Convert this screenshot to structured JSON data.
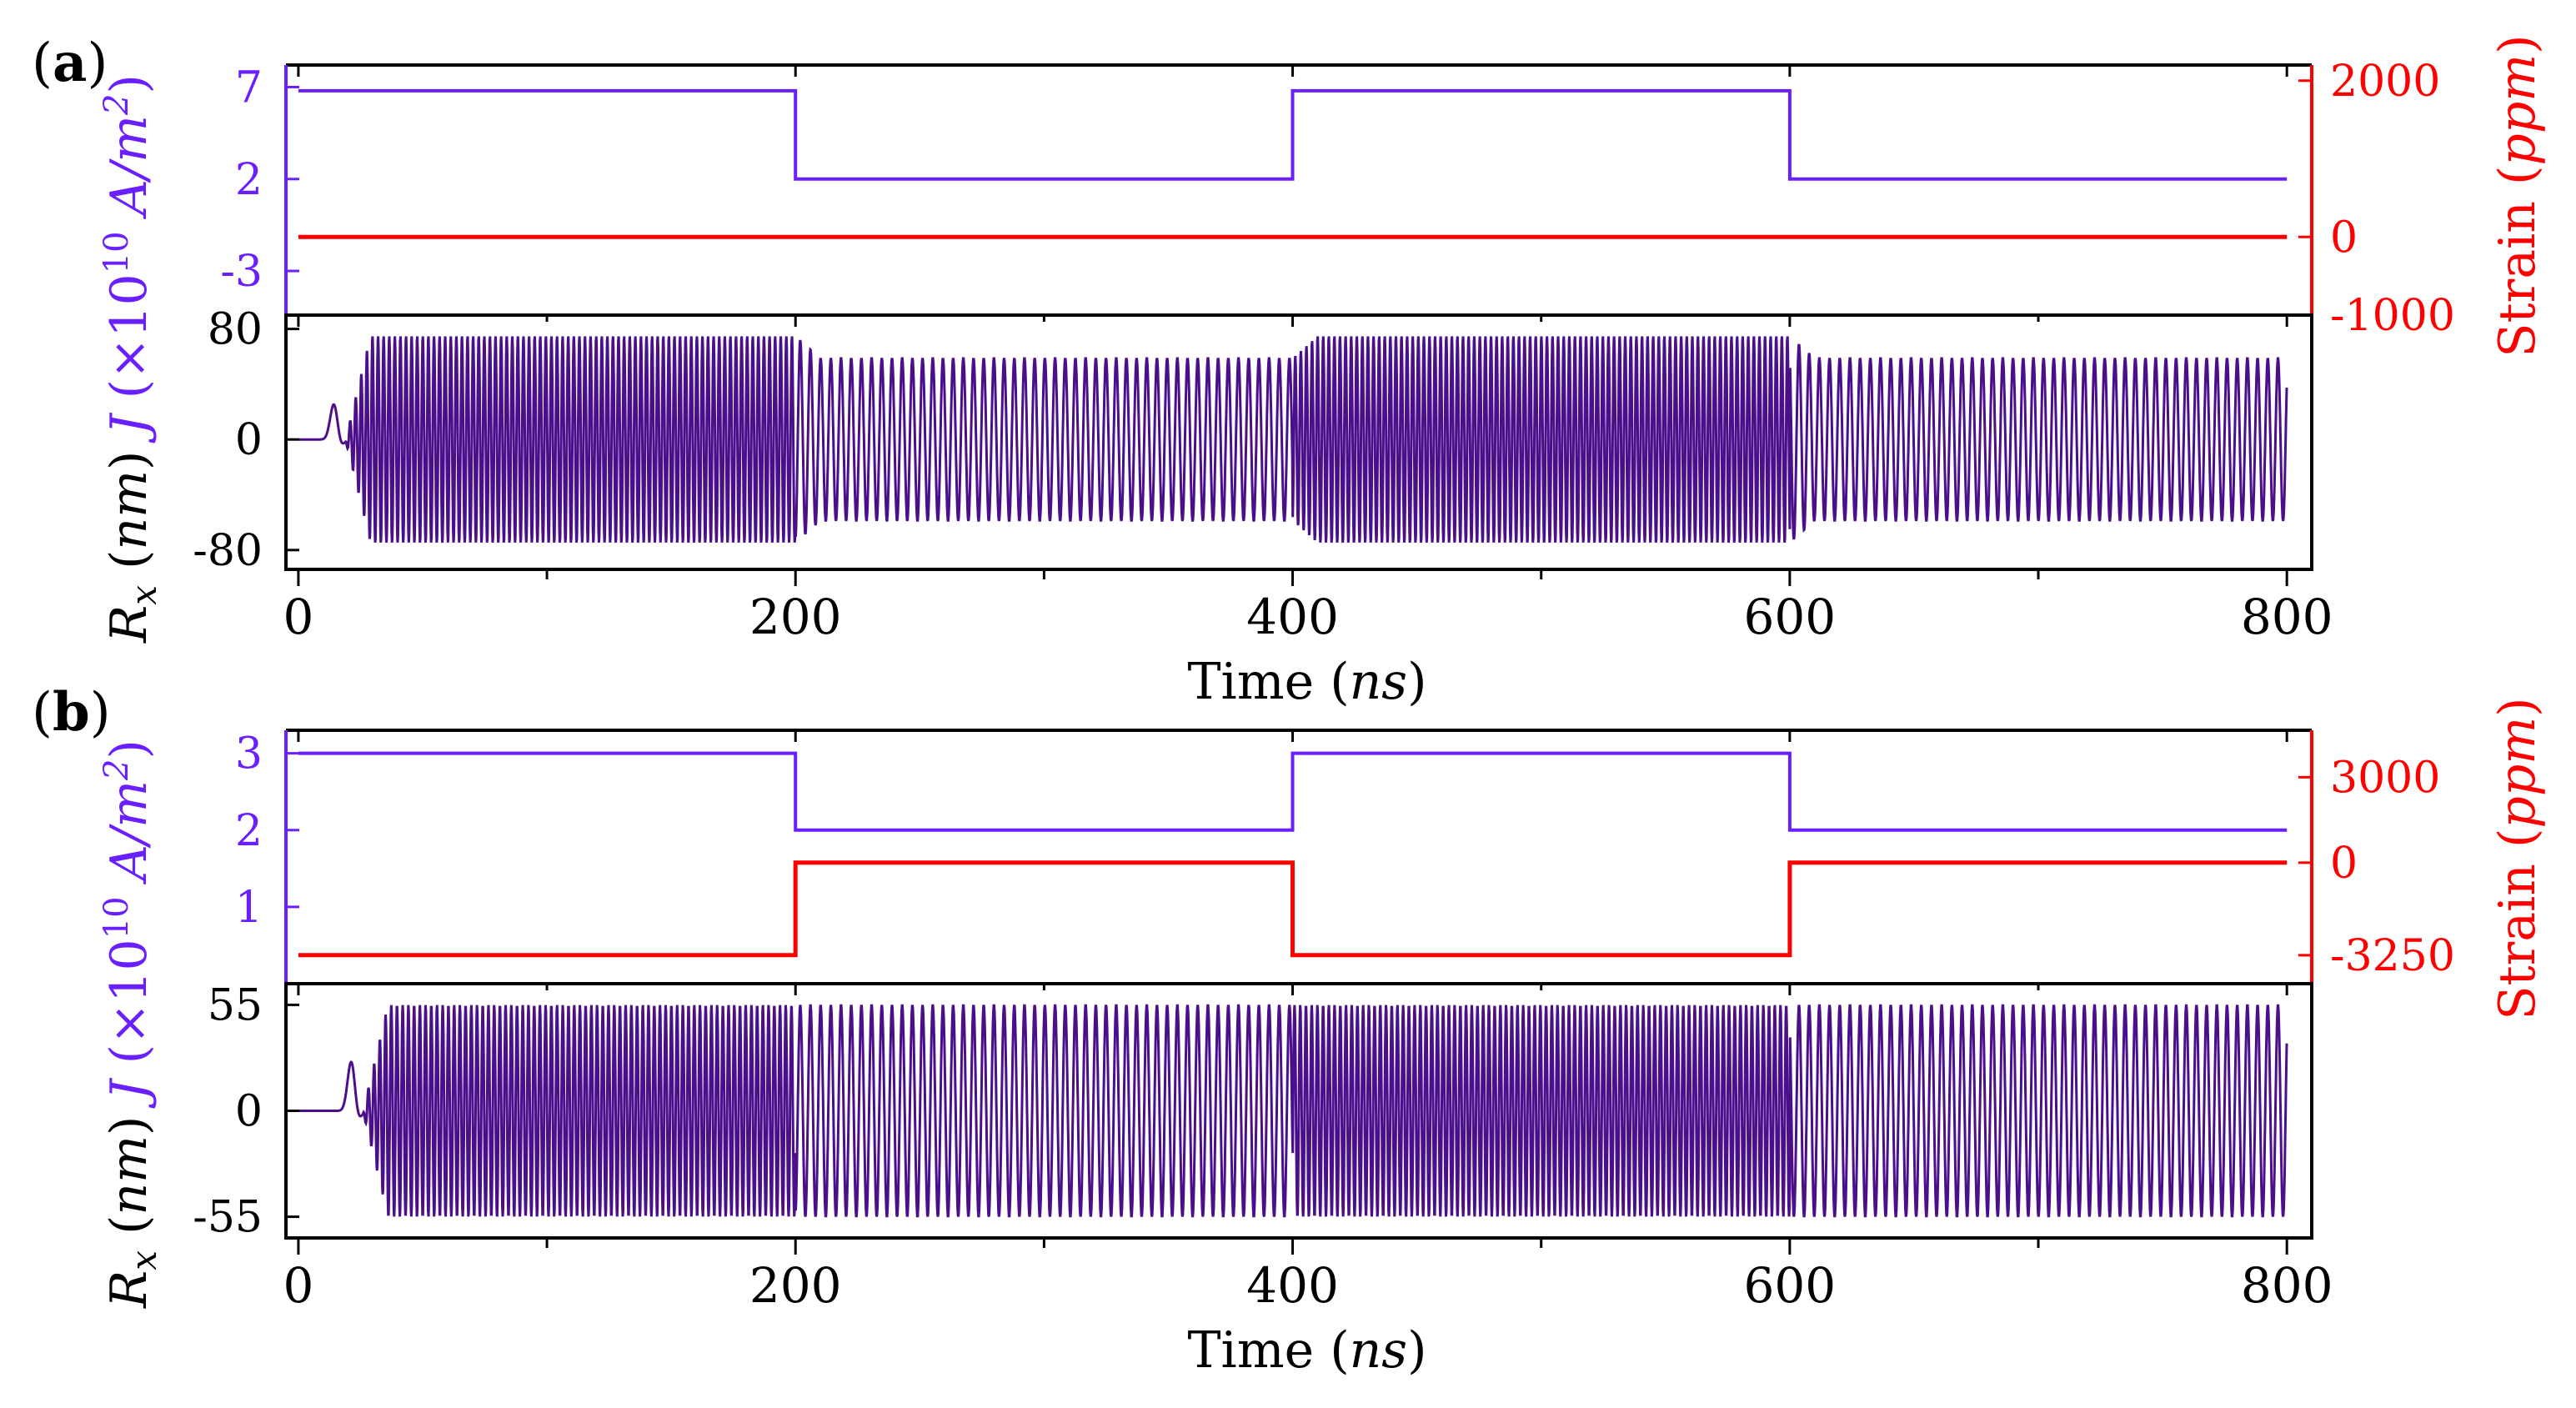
{
  "colors": {
    "current": "#6a1fff",
    "strain": "#ff0000",
    "rx": "#4b0f8c",
    "axis": "#000000"
  },
  "chart_data": [
    {
      "panel_label": "(a)",
      "type": "line",
      "xlabel": {
        "main": "Time",
        "unit": "ns"
      },
      "x_ticks": [
        "0",
        "200",
        "400",
        "600",
        "800"
      ],
      "x_tick_values": [
        0,
        200,
        400,
        600,
        800
      ],
      "xlim": [
        -5,
        810
      ],
      "top": {
        "left_label": {
          "symbol": "J",
          "mult": "(×10",
          "exp": "10",
          "unit": "A/m",
          "unitexp": "2",
          "close": ")"
        },
        "right_label": {
          "main": "Strain",
          "unit": "ppm"
        },
        "left_ticks": [
          "7",
          "2",
          "-3"
        ],
        "left_tick_values": [
          7,
          2,
          -3
        ],
        "left_ylim": [
          -5.4,
          8.2
        ],
        "right_ticks": [
          "2000",
          "0",
          "-1000"
        ],
        "right_tick_values": [
          2000,
          0,
          -1000
        ],
        "right_ylim": [
          -1000,
          2200
        ],
        "series": [
          {
            "name": "J",
            "axis": "left",
            "x": [
              0,
              200,
              200,
              400,
              400,
              600,
              600,
              800
            ],
            "y": [
              6.8,
              6.8,
              2,
              2,
              6.8,
              6.8,
              2,
              2
            ]
          },
          {
            "name": "Strain",
            "axis": "right",
            "x": [
              0,
              800
            ],
            "y": [
              0,
              0
            ]
          }
        ]
      },
      "bottom": {
        "left_label": {
          "symbol": "R",
          "sub": "x",
          "unit": "nm"
        },
        "left_ticks": [
          "80",
          "0",
          "-80"
        ],
        "left_tick_values": [
          80,
          0,
          -80
        ],
        "ylim": [
          -94,
          90
        ],
        "series": {
          "name": "Rx",
          "start_time": 8,
          "bump_time": 15,
          "bump_amp": 34,
          "segments": [
            {
              "t0": 0,
              "t1": 200,
              "amp": 75,
              "period": 2.25
            },
            {
              "t0": 200,
              "t1": 400,
              "amp": 59,
              "period": 4.1
            },
            {
              "t0": 400,
              "t1": 600,
              "amp": 75,
              "period": 2.25
            },
            {
              "t0": 600,
              "t1": 800,
              "amp": 59,
              "period": 4.1
            }
          ]
        }
      }
    },
    {
      "panel_label": "(b)",
      "type": "line",
      "xlabel": {
        "main": "Time",
        "unit": "ns"
      },
      "x_ticks": [
        "0",
        "200",
        "400",
        "600",
        "800"
      ],
      "x_tick_values": [
        0,
        200,
        400,
        600,
        800
      ],
      "xlim": [
        -5,
        810
      ],
      "top": {
        "left_label": {
          "symbol": "J",
          "mult": "(×10",
          "exp": "10",
          "unit": "A/m",
          "unitexp": "2",
          "close": ")"
        },
        "right_label": {
          "main": "Strain",
          "unit": "ppm"
        },
        "left_ticks": [
          "3",
          "2",
          "1"
        ],
        "left_tick_values": [
          3,
          2,
          1
        ],
        "left_ylim": [
          0,
          3.3
        ],
        "right_ticks": [
          "3000",
          "0",
          "-3250"
        ],
        "right_tick_values": [
          3000,
          0,
          -3250
        ],
        "right_ylim": [
          -4250,
          4650
        ],
        "series": [
          {
            "name": "J",
            "axis": "left",
            "x": [
              0,
              200,
              200,
              400,
              400,
              600,
              600,
              800
            ],
            "y": [
              3,
              3,
              2,
              2,
              3,
              3,
              2,
              2
            ]
          },
          {
            "name": "Strain",
            "axis": "right",
            "x": [
              0,
              200,
              200,
              400,
              400,
              600,
              600,
              800
            ],
            "y": [
              -3250,
              -3250,
              0,
              0,
              -3250,
              -3250,
              0,
              0
            ]
          }
        ]
      },
      "bottom": {
        "left_label": {
          "symbol": "R",
          "sub": "x",
          "unit": "nm"
        },
        "left_ticks": [
          "55",
          "0",
          "-55"
        ],
        "left_tick_values": [
          55,
          0,
          -55
        ],
        "ylim": [
          -66,
          66
        ],
        "series": {
          "name": "Rx",
          "start_time": 15,
          "bump_time": 22,
          "bump_amp": 34,
          "segments": [
            {
              "t0": 0,
              "t1": 200,
              "amp": 55,
              "period": 2.3
            },
            {
              "t0": 200,
              "t1": 400,
              "amp": 55,
              "period": 4.1
            },
            {
              "t0": 400,
              "t1": 600,
              "amp": 55,
              "period": 2.3
            },
            {
              "t0": 600,
              "t1": 800,
              "amp": 55,
              "period": 4.1
            }
          ]
        }
      }
    }
  ]
}
